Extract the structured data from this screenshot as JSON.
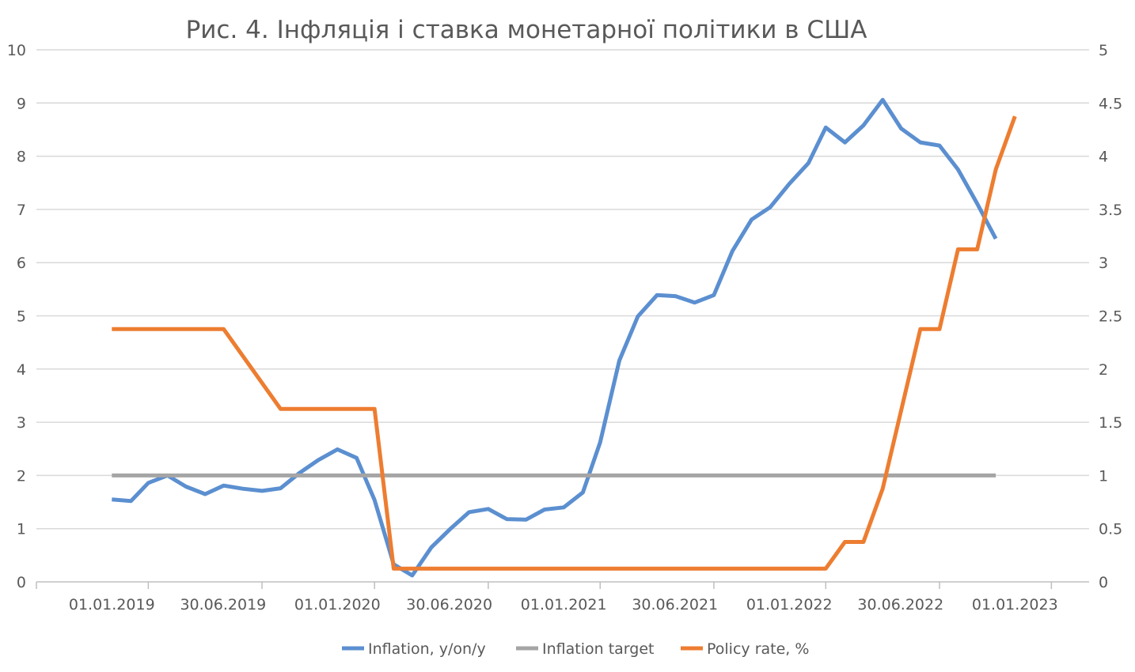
{
  "chart_data": {
    "type": "line",
    "title": "Рис. 4. Інфляція і ставка монетарної політики в США",
    "left_axis": {
      "min": 0,
      "max": 10,
      "step": 1,
      "tick_labels": [
        "0",
        "1",
        "2",
        "3",
        "4",
        "5",
        "6",
        "7",
        "8",
        "9",
        "10"
      ]
    },
    "right_axis": {
      "min": 0,
      "max": 5,
      "step": 0.5,
      "tick_labels": [
        "0",
        "0.5",
        "1",
        "1.5",
        "2",
        "2.5",
        "3",
        "3.5",
        "4",
        "4.5",
        "5"
      ]
    },
    "x_axis": {
      "start": "2018-09-01",
      "end": "2023-05-01",
      "tick_dates": [
        "2018-09-01",
        "2019-03-01",
        "2019-09-01",
        "2020-03-01",
        "2020-09-01",
        "2021-03-01",
        "2021-09-01",
        "2022-03-01",
        "2022-09-01",
        "2023-03-01",
        "2023-09-01"
      ],
      "labels": [
        {
          "date": "2019-01-01",
          "text": "01.01.2019"
        },
        {
          "date": "2019-06-30",
          "text": "30.06.2019"
        },
        {
          "date": "2020-01-01",
          "text": "01.01.2020"
        },
        {
          "date": "2020-06-30",
          "text": "30.06.2020"
        },
        {
          "date": "2021-01-01",
          "text": "01.01.2021"
        },
        {
          "date": "2021-06-30",
          "text": "30.06.2021"
        },
        {
          "date": "2022-01-01",
          "text": "01.01.2022"
        },
        {
          "date": "2022-06-30",
          "text": "30.06.2022"
        },
        {
          "date": "2023-01-01",
          "text": "01.01.2023"
        }
      ]
    },
    "gridlines": true,
    "legend_position": "bottom",
    "series": [
      {
        "name": "Inflation, y/on/y",
        "axis": "left",
        "color": "#5B8FD0",
        "points": [
          [
            "2019-01-01",
            1.55
          ],
          [
            "2019-02-01",
            1.52
          ],
          [
            "2019-03-01",
            1.86
          ],
          [
            "2019-04-01",
            2.0
          ],
          [
            "2019-05-01",
            1.79
          ],
          [
            "2019-06-01",
            1.65
          ],
          [
            "2019-07-01",
            1.81
          ],
          [
            "2019-08-01",
            1.75
          ],
          [
            "2019-09-01",
            1.71
          ],
          [
            "2019-10-01",
            1.76
          ],
          [
            "2019-11-01",
            2.05
          ],
          [
            "2019-12-01",
            2.29
          ],
          [
            "2020-01-01",
            2.49
          ],
          [
            "2020-02-01",
            2.33
          ],
          [
            "2020-03-01",
            1.54
          ],
          [
            "2020-04-01",
            0.33
          ],
          [
            "2020-05-01",
            0.12
          ],
          [
            "2020-06-01",
            0.65
          ],
          [
            "2020-07-01",
            0.99
          ],
          [
            "2020-08-01",
            1.31
          ],
          [
            "2020-09-01",
            1.37
          ],
          [
            "2020-10-01",
            1.18
          ],
          [
            "2020-11-01",
            1.17
          ],
          [
            "2020-12-01",
            1.36
          ],
          [
            "2021-01-01",
            1.4
          ],
          [
            "2021-02-01",
            1.68
          ],
          [
            "2021-03-01",
            2.62
          ],
          [
            "2021-04-01",
            4.16
          ],
          [
            "2021-05-01",
            4.99
          ],
          [
            "2021-06-01",
            5.39
          ],
          [
            "2021-07-01",
            5.37
          ],
          [
            "2021-08-01",
            5.25
          ],
          [
            "2021-09-01",
            5.39
          ],
          [
            "2021-10-01",
            6.22
          ],
          [
            "2021-11-01",
            6.81
          ],
          [
            "2021-12-01",
            7.04
          ],
          [
            "2022-01-01",
            7.48
          ],
          [
            "2022-02-01",
            7.87
          ],
          [
            "2022-03-01",
            8.54
          ],
          [
            "2022-04-01",
            8.26
          ],
          [
            "2022-05-01",
            8.58
          ],
          [
            "2022-06-01",
            9.06
          ],
          [
            "2022-07-01",
            8.52
          ],
          [
            "2022-08-01",
            8.26
          ],
          [
            "2022-09-01",
            8.2
          ],
          [
            "2022-10-01",
            7.75
          ],
          [
            "2022-11-01",
            7.11
          ],
          [
            "2022-12-01",
            6.45
          ]
        ]
      },
      {
        "name": "Inflation target",
        "axis": "left",
        "color": "#A5A5A5",
        "points": [
          [
            "2019-01-01",
            2
          ],
          [
            "2022-12-01",
            2
          ]
        ]
      },
      {
        "name": "Policy rate, %",
        "axis": "right",
        "color": "#ED7D31",
        "points": [
          [
            "2019-01-01",
            2.375
          ],
          [
            "2019-07-01",
            2.375
          ],
          [
            "2019-10-01",
            1.625
          ],
          [
            "2020-03-01",
            1.625
          ],
          [
            "2020-04-01",
            0.125
          ],
          [
            "2022-03-01",
            0.125
          ],
          [
            "2022-04-01",
            0.375
          ],
          [
            "2022-05-01",
            0.375
          ],
          [
            "2022-06-01",
            0.875
          ],
          [
            "2022-08-01",
            2.375
          ],
          [
            "2022-09-01",
            2.375
          ],
          [
            "2022-10-01",
            3.125
          ],
          [
            "2022-11-01",
            3.125
          ],
          [
            "2022-12-01",
            3.875
          ],
          [
            "2023-01-01",
            4.375
          ]
        ]
      }
    ]
  }
}
